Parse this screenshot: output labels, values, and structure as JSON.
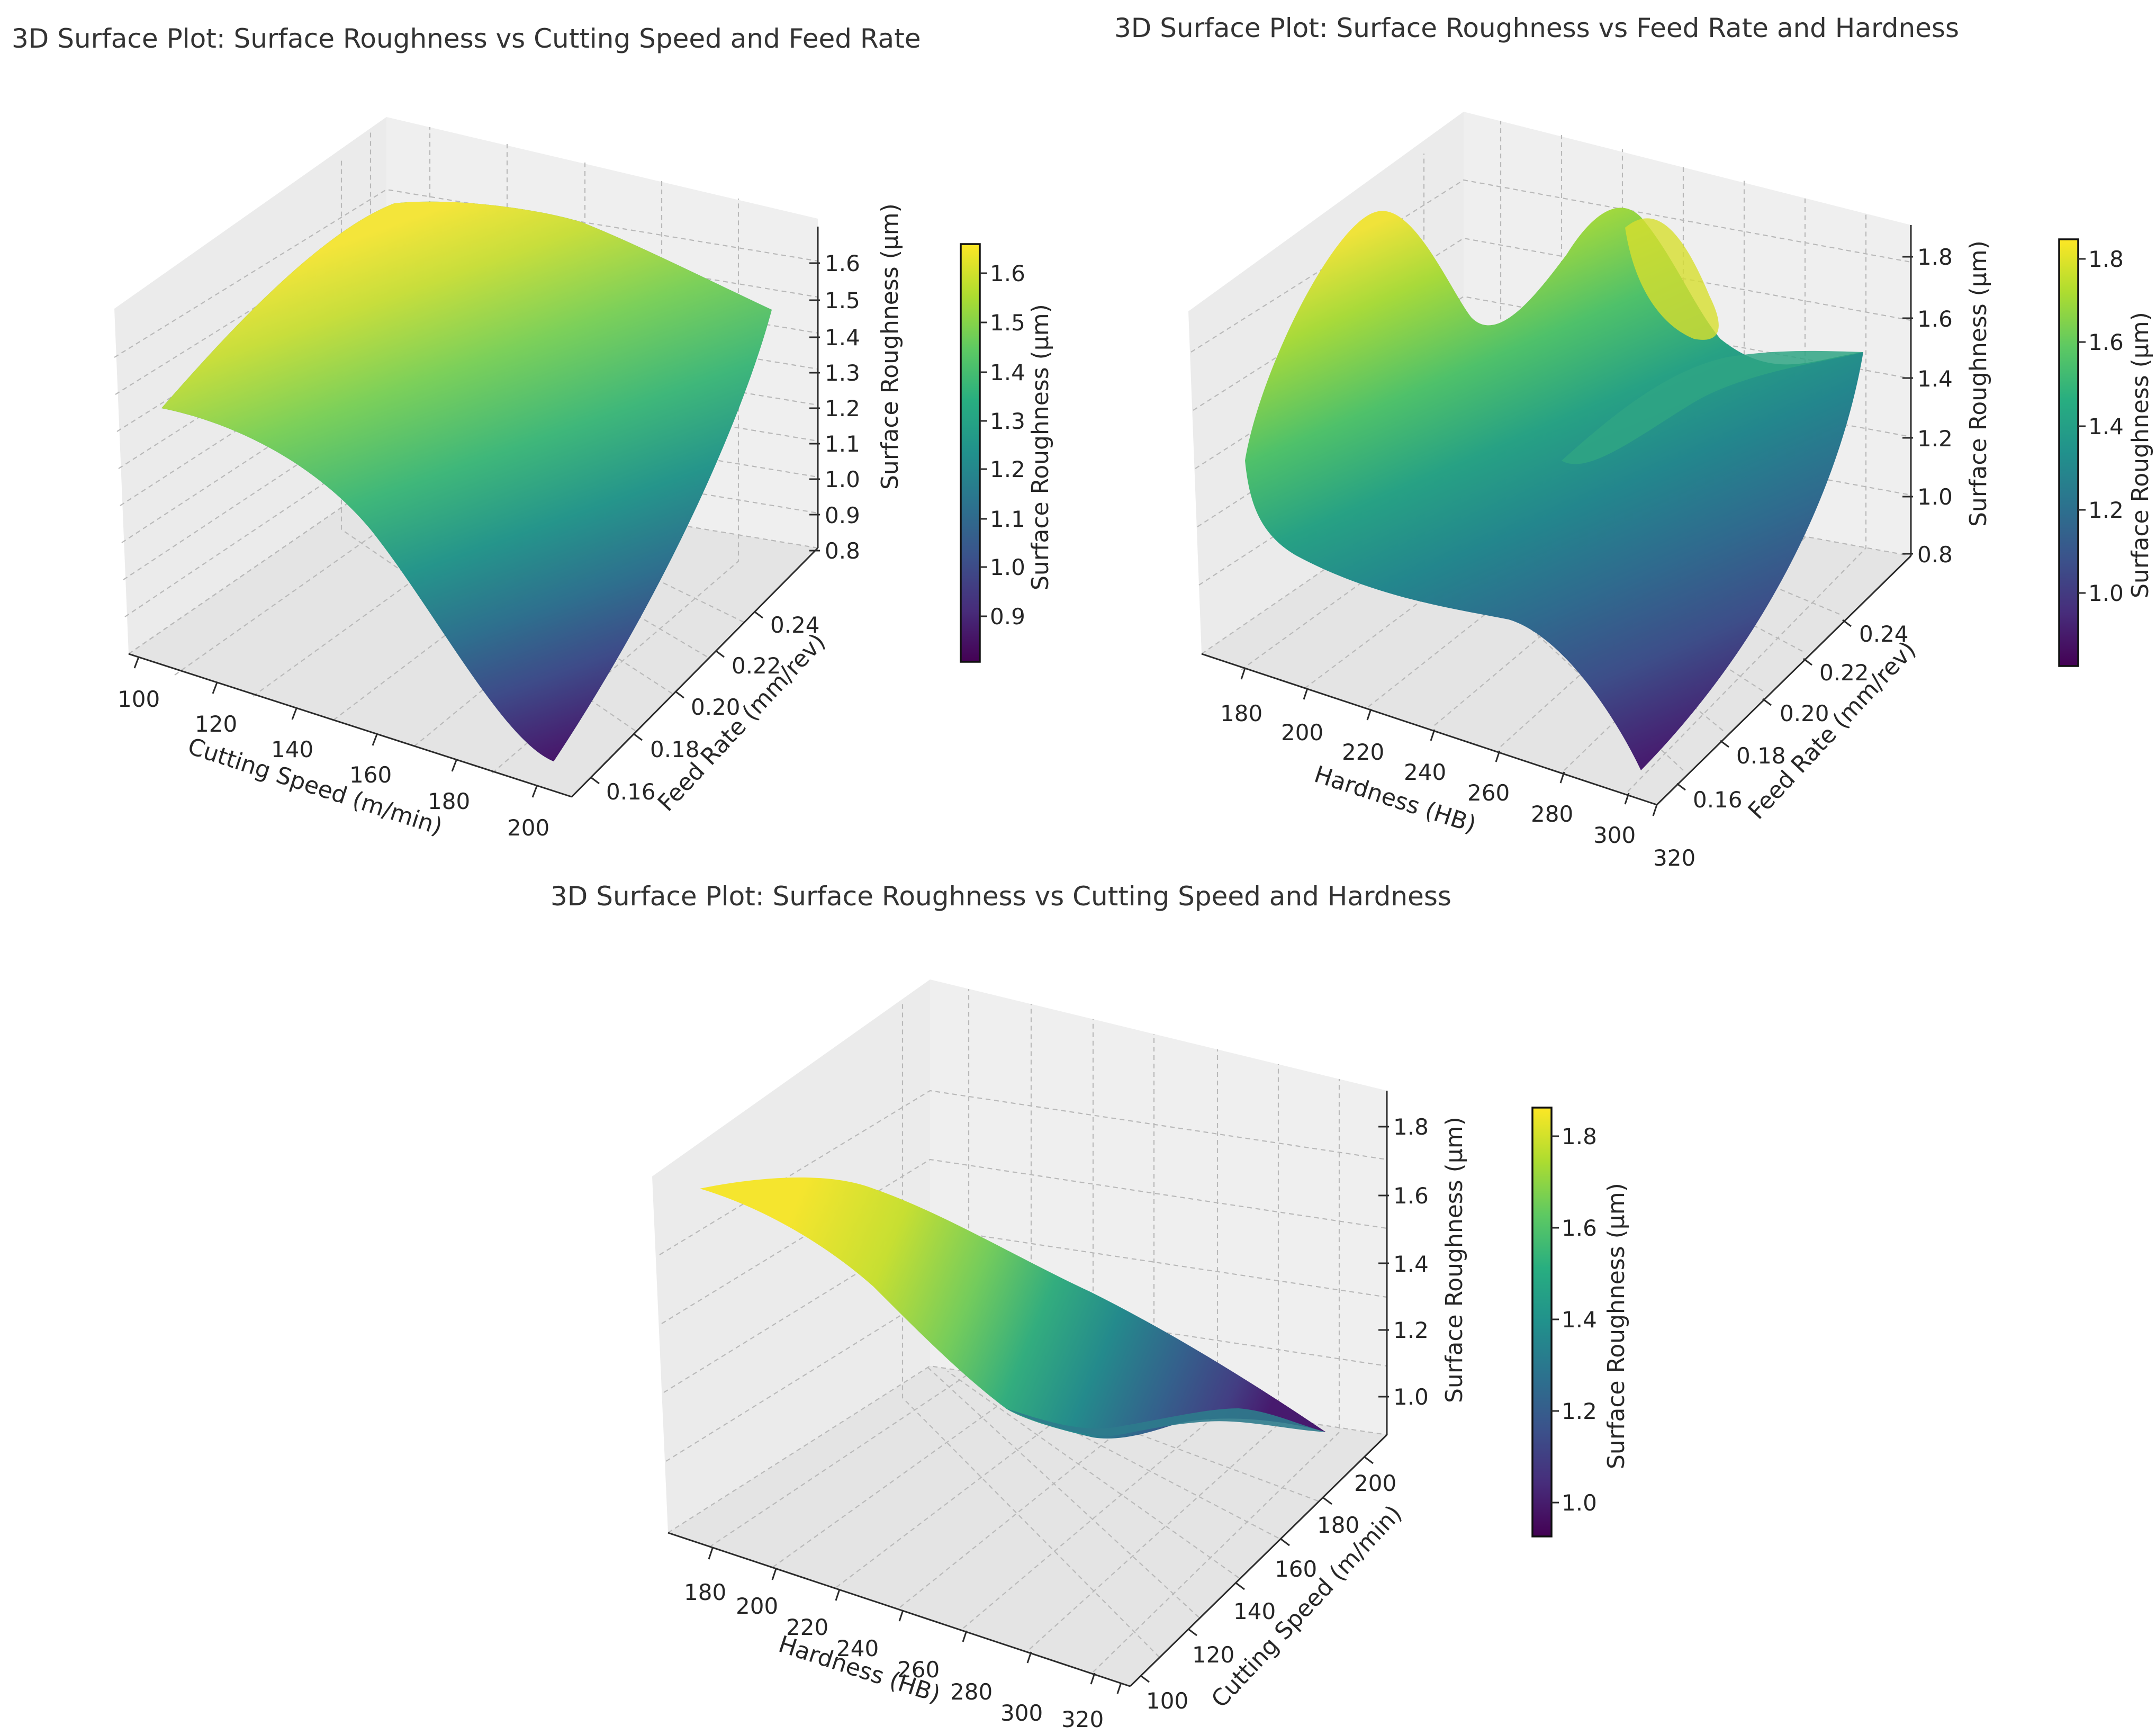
{
  "chart_data": [
    {
      "type": "surface3d",
      "title": "3D Surface Plot: Surface Roughness vs Cutting Speed and Feed Rate",
      "xlabel": "Cutting Speed (m/min)",
      "ylabel": "Feed Rate (mm/rev)",
      "zlabel": "Surface Roughness (µm)",
      "colorbar_label": "Surface Roughness (µm)",
      "colormap": "viridis",
      "xlim": [
        95,
        205
      ],
      "ylim": [
        0.145,
        0.255
      ],
      "zlim": [
        0.8,
        1.65
      ],
      "x_ticks": [
        "100",
        "120",
        "140",
        "160",
        "180",
        "200"
      ],
      "y_ticks": [
        "0.16",
        "0.18",
        "0.20",
        "0.22",
        "0.24"
      ],
      "z_ticks": [
        "0.8",
        "0.9",
        "1.0",
        "1.1",
        "1.2",
        "1.3",
        "1.4",
        "1.5",
        "1.6"
      ],
      "colorbar_ticks": [
        "0.9",
        "1.0",
        "1.1",
        "1.2",
        "1.3",
        "1.4",
        "1.5",
        "1.6"
      ],
      "colorbar_range": [
        0.82,
        1.66
      ],
      "surface_corners": {
        "x100_y015": 1.4,
        "x100_y025": 1.44,
        "x200_y015": 0.82,
        "x200_y025": 1.35
      },
      "surface_peak": {
        "x": 140,
        "y": 0.25,
        "z": 1.66
      }
    },
    {
      "type": "surface3d",
      "title": "3D Surface Plot: Surface Roughness vs Feed Rate and Hardness",
      "xlabel": "Hardness (HB)",
      "ylabel": "Feed Rate (mm/rev)",
      "zlabel": "Surface Roughness (µm)",
      "colorbar_label": "Surface Roughness (µm)",
      "colormap": "viridis",
      "xlim": [
        170,
        330
      ],
      "ylim": [
        0.145,
        0.255
      ],
      "zlim": [
        0.8,
        1.88
      ],
      "x_ticks": [
        "180",
        "200",
        "220",
        "240",
        "260",
        "280",
        "300",
        "320"
      ],
      "y_ticks": [
        "0.16",
        "0.18",
        "0.20",
        "0.22",
        "0.24"
      ],
      "z_ticks": [
        "0.8",
        "1.0",
        "1.2",
        "1.4",
        "1.6",
        "1.8"
      ],
      "colorbar_ticks": [
        "1.0",
        "1.2",
        "1.4",
        "1.6",
        "1.8"
      ],
      "colorbar_range": [
        0.82,
        1.85
      ],
      "surface_corners": {
        "x180_y015": 1.3,
        "x180_y025": 1.65,
        "x320_y015": 0.82,
        "x320_y025": 1.45
      },
      "surface_peaks": [
        {
          "x": 180,
          "y": 0.24,
          "z": 1.85
        },
        {
          "x": 240,
          "y": 0.25,
          "z": 1.85
        }
      ]
    },
    {
      "type": "surface3d",
      "title": "3D Surface Plot: Surface Roughness vs Cutting Speed and Hardness",
      "xlabel": "Hardness (HB)",
      "ylabel": "Cutting Speed (m/min)",
      "zlabel": "Surface Roughness (µm)",
      "colorbar_label": "Surface Roughness (µm)",
      "colormap": "viridis",
      "xlim": [
        170,
        330
      ],
      "ylim": [
        95,
        205
      ],
      "zlim": [
        0.9,
        1.88
      ],
      "x_ticks": [
        "180",
        "200",
        "220",
        "240",
        "260",
        "280",
        "300",
        "320"
      ],
      "y_ticks": [
        "100",
        "120",
        "140",
        "160",
        "180",
        "200"
      ],
      "z_ticks": [
        "1.0",
        "1.2",
        "1.4",
        "1.6",
        "1.8"
      ],
      "colorbar_ticks": [
        "1.0",
        "1.2",
        "1.4",
        "1.6",
        "1.8"
      ],
      "colorbar_range": [
        0.92,
        1.86
      ],
      "surface_corners": {
        "x180_y100": 1.8,
        "x180_y200": 1.8,
        "x320_y100": 1.05,
        "x320_y200": 0.95
      }
    }
  ]
}
